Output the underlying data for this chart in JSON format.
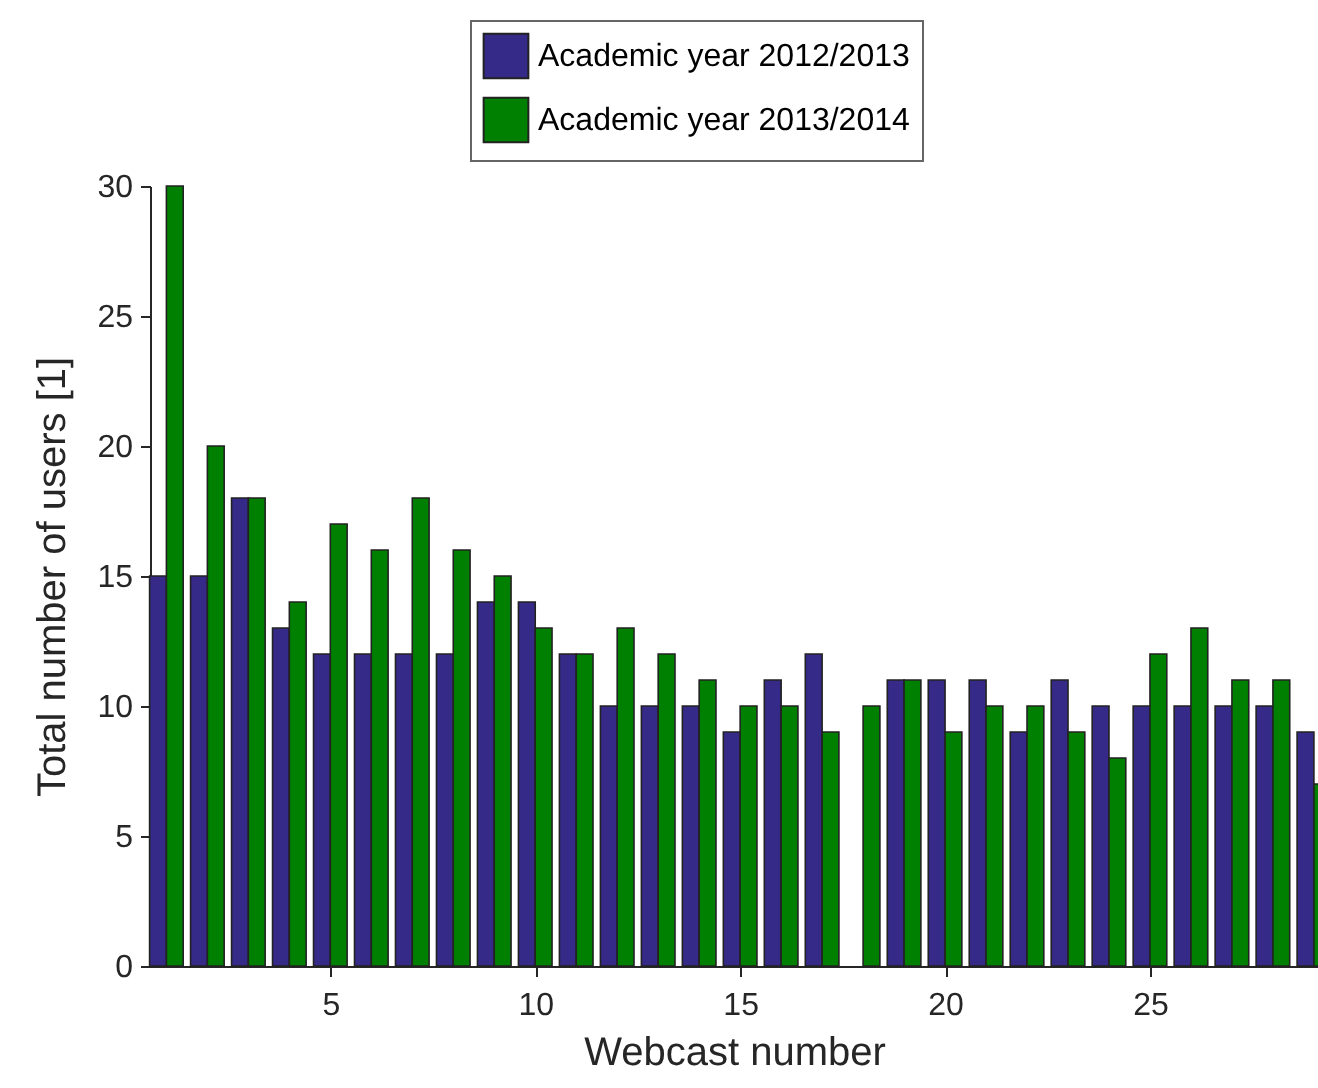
{
  "chart_data": {
    "type": "bar",
    "xlabel": "Webcast number",
    "ylabel": "Total number of users [1]",
    "x": [
      1,
      2,
      3,
      4,
      5,
      6,
      7,
      8,
      9,
      10,
      11,
      12,
      13,
      14,
      15,
      16,
      17,
      18,
      19,
      20,
      21,
      22,
      23,
      24,
      25,
      26,
      27,
      28,
      29
    ],
    "series": [
      {
        "name": "Academic year 2012/2013",
        "color": "#352a87",
        "values": [
          15,
          15,
          18,
          13,
          12,
          12,
          12,
          12,
          14,
          14,
          12,
          10,
          10,
          10,
          9,
          11,
          12,
          null,
          11,
          11,
          11,
          9,
          11,
          10,
          10,
          10,
          10,
          10,
          9
        ]
      },
      {
        "name": "Academic year 2013/2014",
        "color": "#008000",
        "values": [
          30,
          20,
          18,
          14,
          17,
          16,
          18,
          16,
          15,
          13,
          12,
          13,
          12,
          11,
          10,
          10,
          9,
          10,
          11,
          9,
          10,
          10,
          9,
          8,
          12,
          13,
          11,
          11,
          7
        ]
      }
    ],
    "xlim": [
      0.6,
      29.1
    ],
    "xticks": [
      5,
      10,
      15,
      20,
      25
    ],
    "ylim": [
      0,
      30
    ],
    "yticks": [
      0,
      5,
      10,
      15,
      20,
      25,
      30
    ],
    "legend": "top",
    "grid": false
  }
}
